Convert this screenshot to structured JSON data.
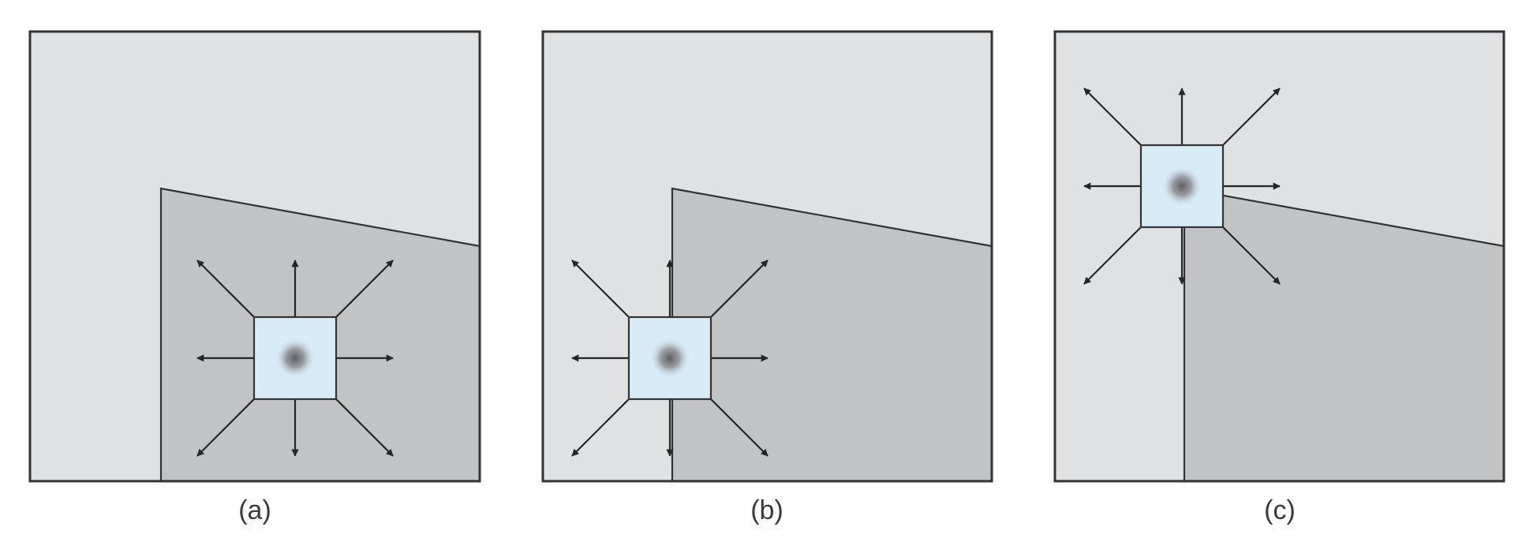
{
  "panels": [
    {
      "label": "(a)"
    },
    {
      "label": "(b)"
    },
    {
      "label": "(c)"
    }
  ],
  "colors": {
    "background_region": "#e0e1e2",
    "shaded_region": "#c2c3c5",
    "window_fill": "#d8ecf8",
    "outline": "#333333",
    "arrow": "#262626",
    "spot_center": "#5e5e62"
  },
  "icons": {
    "window": "square-window-with-dot",
    "direction": "arrow-icon"
  }
}
